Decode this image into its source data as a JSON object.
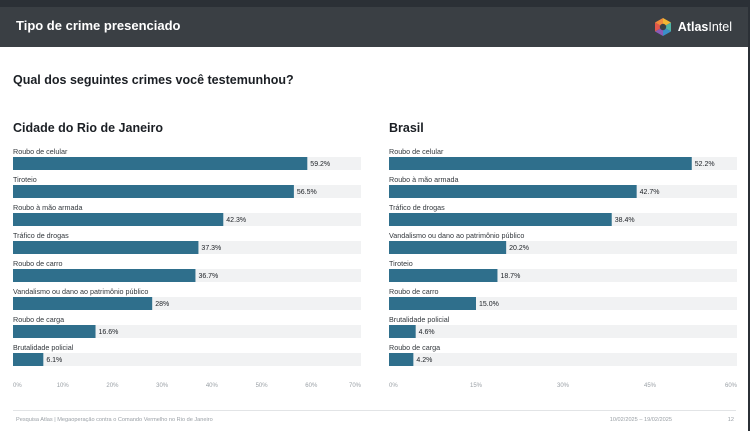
{
  "header": {
    "title": "Tipo de crime presenciado",
    "brand_strong": "Atlas",
    "brand_light": "Intel",
    "logo_icon": "atlasintel-logo-icon"
  },
  "question": "Qual dos seguintes crimes você testemunhou?",
  "colors": {
    "bar": "#2f6f8c",
    "track": "#f1f2f3",
    "header_bg": "#3a3f44"
  },
  "chart_data": [
    {
      "type": "bar",
      "orientation": "horizontal",
      "title": "Cidade do Rio de Janeiro",
      "categories": [
        "Roubo de celular",
        "Tiroteio",
        "Roubo à mão armada",
        "Tráfico de drogas",
        "Roubo de carro",
        "Vandalismo ou dano ao patrimônio público",
        "Roubo de carga",
        "Brutalidade policial"
      ],
      "values": [
        59.2,
        56.5,
        42.3,
        37.3,
        36.7,
        28,
        16.6,
        6.1
      ],
      "value_labels": [
        "59.2%",
        "56.5%",
        "42.3%",
        "37.3%",
        "36.7%",
        "28%",
        "16.6%",
        "6.1%"
      ],
      "xlim": [
        0,
        70
      ],
      "xticks": [
        0,
        10,
        20,
        30,
        40,
        50,
        60,
        70
      ],
      "xtick_labels": [
        "0%",
        "10%",
        "20%",
        "30%",
        "40%",
        "50%",
        "60%",
        "70%"
      ]
    },
    {
      "type": "bar",
      "orientation": "horizontal",
      "title": "Brasil",
      "categories": [
        "Roubo de celular",
        "Roubo à mão armada",
        "Tráfico de drogas",
        "Vandalismo ou dano ao patrimônio público",
        "Tiroteio",
        "Roubo de carro",
        "Brutalidade policial",
        "Roubo de carga"
      ],
      "values": [
        52.2,
        42.7,
        38.4,
        20.2,
        18.7,
        15.0,
        4.6,
        4.2
      ],
      "value_labels": [
        "52.2%",
        "42.7%",
        "38.4%",
        "20.2%",
        "18.7%",
        "15.0%",
        "4.6%",
        "4.2%"
      ],
      "xlim": [
        0,
        60
      ],
      "xticks": [
        0,
        15,
        30,
        45,
        60
      ],
      "xtick_labels": [
        "0%",
        "15%",
        "30%",
        "45%",
        "60%"
      ]
    }
  ],
  "footer": {
    "left": "Pesquisa Atlas | Megaoperação contra o Comando Vermelho no Rio de Janeiro",
    "date": "10/02/2025 – 19/02/2025",
    "page": "12"
  }
}
